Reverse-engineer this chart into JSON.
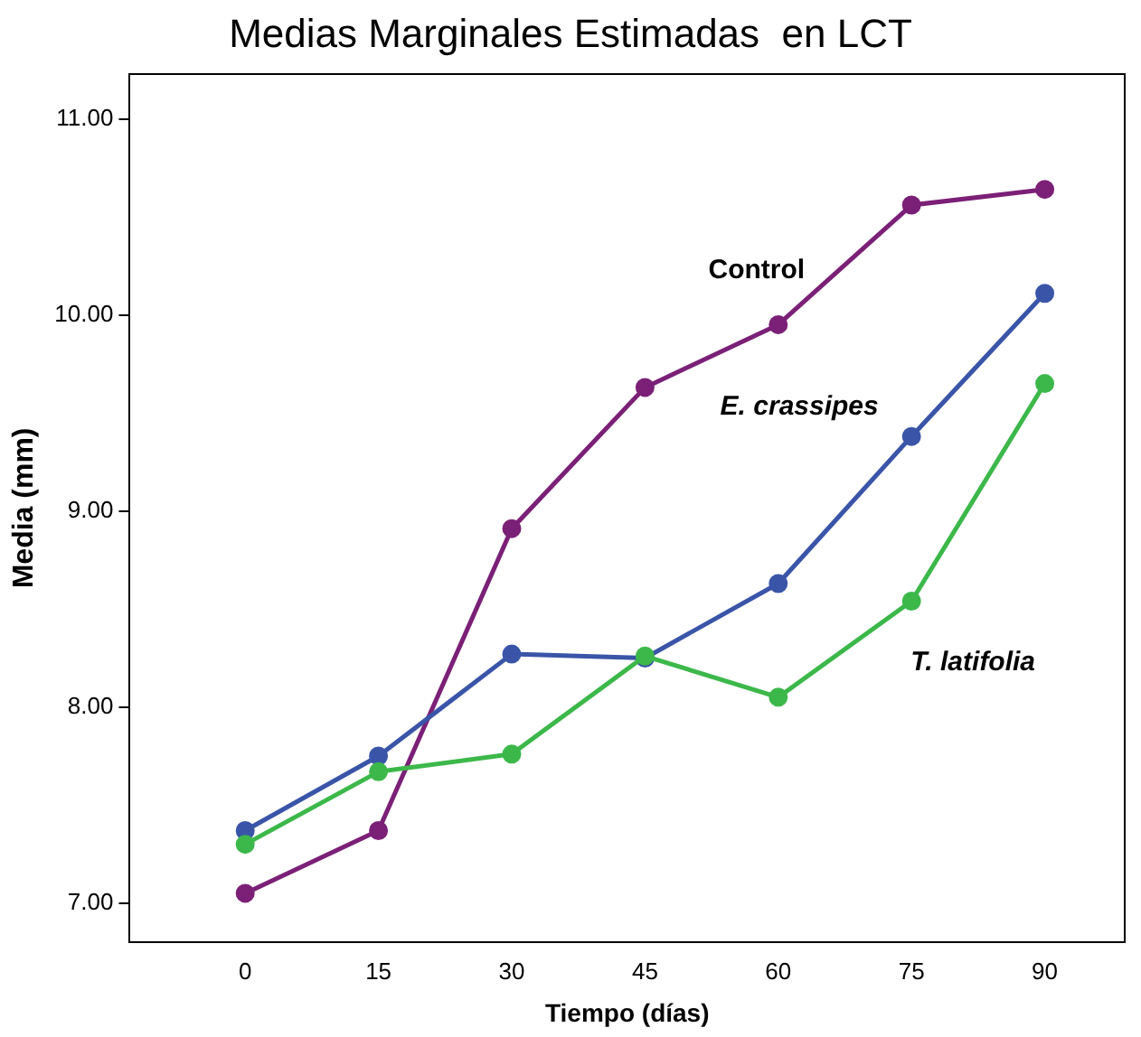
{
  "chart_data": {
    "type": "line",
    "title": "Medias Marginales Estimadas  en LCT",
    "xlabel": "Tiempo (días)",
    "ylabel": "Media (mm)",
    "x": [
      0,
      15,
      30,
      45,
      60,
      75,
      90
    ],
    "xlim": [
      -13,
      99
    ],
    "xticks": [
      0,
      15,
      30,
      45,
      60,
      75,
      90
    ],
    "ylim": [
      6.8,
      11.23
    ],
    "yticks": [
      {
        "value": 7,
        "label": "7.00"
      },
      {
        "value": 8,
        "label": "8.00"
      },
      {
        "value": 9,
        "label": "9.00"
      },
      {
        "value": 10,
        "label": "10.00"
      },
      {
        "value": 11,
        "label": "11.00"
      }
    ],
    "grid": false,
    "legend": false,
    "marker": "circle",
    "line_style": "solid",
    "series": [
      {
        "name": "Control",
        "color": "#7b2077",
        "values": [
          7.05,
          7.37,
          8.91,
          9.63,
          9.95,
          10.56,
          10.64
        ]
      },
      {
        "name": "E. crassipes",
        "color": "#3a55a8",
        "values": [
          7.37,
          7.75,
          8.27,
          8.25,
          8.63,
          9.38,
          10.11
        ]
      },
      {
        "name": "T. latifolia",
        "color": "#3cb84a",
        "values": [
          7.3,
          7.67,
          7.76,
          8.26,
          8.05,
          8.54,
          9.65
        ]
      }
    ]
  }
}
